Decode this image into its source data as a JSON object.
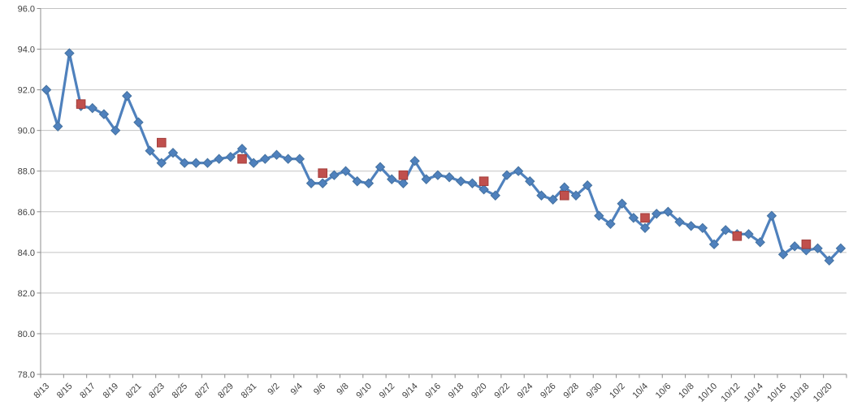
{
  "chart_data": {
    "type": "line",
    "title": "",
    "legend": "none",
    "grid": "horizontal",
    "x_dates": [
      "8/13",
      "8/14",
      "8/15",
      "8/16",
      "8/17",
      "8/18",
      "8/19",
      "8/20",
      "8/21",
      "8/22",
      "8/23",
      "8/24",
      "8/25",
      "8/26",
      "8/27",
      "8/28",
      "8/29",
      "8/30",
      "8/31",
      "9/1",
      "9/2",
      "9/3",
      "9/4",
      "9/5",
      "9/6",
      "9/7",
      "9/8",
      "9/9",
      "9/10",
      "9/11",
      "9/12",
      "9/13",
      "9/14",
      "9/15",
      "9/16",
      "9/17",
      "9/18",
      "9/19",
      "9/20",
      "9/21",
      "9/22",
      "9/23",
      "9/24",
      "9/25",
      "9/26",
      "9/27",
      "9/28",
      "9/29",
      "9/30",
      "10/1",
      "10/2",
      "10/3",
      "10/4",
      "10/5",
      "10/6",
      "10/7",
      "10/8",
      "10/9",
      "10/10",
      "10/11",
      "10/12",
      "10/13",
      "10/14",
      "10/15",
      "10/16",
      "10/17",
      "10/18",
      "10/19",
      "10/20",
      "10/21"
    ],
    "series": [
      {
        "name": "daily-values",
        "marker": "diamond",
        "color": "#4F81BD",
        "values": [
          92.0,
          90.2,
          93.8,
          91.2,
          91.1,
          90.8,
          90.0,
          91.7,
          90.4,
          89.0,
          88.4,
          88.9,
          88.4,
          88.4,
          88.4,
          88.6,
          88.7,
          89.1,
          88.4,
          88.6,
          88.8,
          88.6,
          88.6,
          87.4,
          87.4,
          87.8,
          88.0,
          87.5,
          87.4,
          88.2,
          87.6,
          87.4,
          88.5,
          87.6,
          87.8,
          87.7,
          87.5,
          87.4,
          87.1,
          86.8,
          87.8,
          88.0,
          87.5,
          86.8,
          86.6,
          87.2,
          86.8,
          87.3,
          85.8,
          85.4,
          86.4,
          85.7,
          85.2,
          85.9,
          86.0,
          85.5,
          85.3,
          85.2,
          84.4,
          85.1,
          84.9,
          84.9,
          84.5,
          85.8,
          83.9,
          84.3,
          84.1,
          84.2,
          83.6,
          84.2
        ]
      },
      {
        "name": "weekly-markers",
        "marker": "square",
        "color": "#C0504D",
        "points": [
          {
            "date": "8/16",
            "value": 91.3
          },
          {
            "date": "8/23",
            "value": 89.4
          },
          {
            "date": "8/30",
            "value": 88.6
          },
          {
            "date": "9/6",
            "value": 87.9
          },
          {
            "date": "9/13",
            "value": 87.8
          },
          {
            "date": "9/20",
            "value": 87.5
          },
          {
            "date": "9/27",
            "value": 86.8
          },
          {
            "date": "10/4",
            "value": 85.7
          },
          {
            "date": "10/12",
            "value": 84.8
          },
          {
            "date": "10/18",
            "value": 84.4
          }
        ]
      }
    ],
    "y_axis": {
      "min": 78.0,
      "max": 96.0,
      "step": 2.0,
      "tick_labels": [
        "96.0",
        "94.0",
        "92.0",
        "90.0",
        "88.0",
        "86.0",
        "84.0",
        "82.0",
        "80.0",
        "78.0"
      ]
    },
    "x_axis": {
      "label_every": 2,
      "tick_labels": [
        "8/13",
        "8/15",
        "8/17",
        "8/19",
        "8/21",
        "8/23",
        "8/25",
        "8/27",
        "8/29",
        "8/31",
        "9/2",
        "9/4",
        "9/6",
        "9/8",
        "9/10",
        "9/12",
        "9/14",
        "9/16",
        "9/18",
        "9/20",
        "9/22",
        "9/24",
        "9/26",
        "9/28",
        "9/30",
        "10/2",
        "10/4",
        "10/6",
        "10/8",
        "10/10",
        "10/12",
        "10/14",
        "10/16",
        "10/18",
        "10/20"
      ]
    },
    "colors": {
      "gridline": "#C3C3C3",
      "axis": "#8C8C8C",
      "label": "#3F3F3F",
      "background": "#FFFFFF"
    }
  }
}
